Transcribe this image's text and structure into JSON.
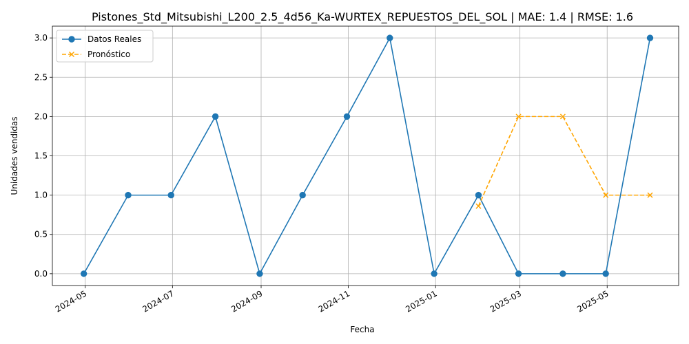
{
  "chart_data": {
    "type": "line",
    "title": "Pistones_Std_Mitsubishi_L200_2.5_4d56_Ka-WURTEX_REPUESTOS_DEL_SOL | MAE: 1.4 | RMSE: 1.6",
    "xlabel": "Fecha",
    "ylabel": "Unidades vendidas",
    "x_type": "date",
    "xlim": [
      "2024-04-08",
      "2025-06-20"
    ],
    "ylim": [
      -0.15,
      3.15
    ],
    "x_ticks": [
      "2024-05-01",
      "2024-07-01",
      "2024-09-01",
      "2024-11-01",
      "2025-01-01",
      "2025-03-01",
      "2025-05-01"
    ],
    "x_tick_labels": [
      "2024-05",
      "2024-07",
      "2024-09",
      "2024-11",
      "2025-01",
      "2025-03",
      "2025-05"
    ],
    "y_ticks": [
      0.0,
      0.5,
      1.0,
      1.5,
      2.0,
      2.5,
      3.0
    ],
    "y_tick_labels": [
      "0.0",
      "0.5",
      "1.0",
      "1.5",
      "2.0",
      "2.5",
      "3.0"
    ],
    "grid": true,
    "legend_position": "top-left",
    "series": [
      {
        "name": "Datos Reales",
        "color": "#1f77b4",
        "line_style": "solid",
        "marker": "circle",
        "x": [
          "2024-04-30",
          "2024-05-31",
          "2024-06-30",
          "2024-07-31",
          "2024-08-31",
          "2024-09-30",
          "2024-10-31",
          "2024-11-30",
          "2024-12-31",
          "2025-01-31",
          "2025-02-28",
          "2025-03-31",
          "2025-04-30",
          "2025-05-31"
        ],
        "values": [
          0,
          1,
          1,
          2,
          0,
          1,
          2,
          3,
          0,
          1,
          0,
          0,
          0,
          3
        ]
      },
      {
        "name": "Pronóstico",
        "color": "#ffa500",
        "line_style": "dashed",
        "marker": "x",
        "x": [
          "2025-01-31",
          "2025-02-28",
          "2025-03-31",
          "2025-04-30",
          "2025-05-31"
        ],
        "values": [
          0.86,
          2,
          2,
          1,
          1
        ]
      }
    ]
  }
}
